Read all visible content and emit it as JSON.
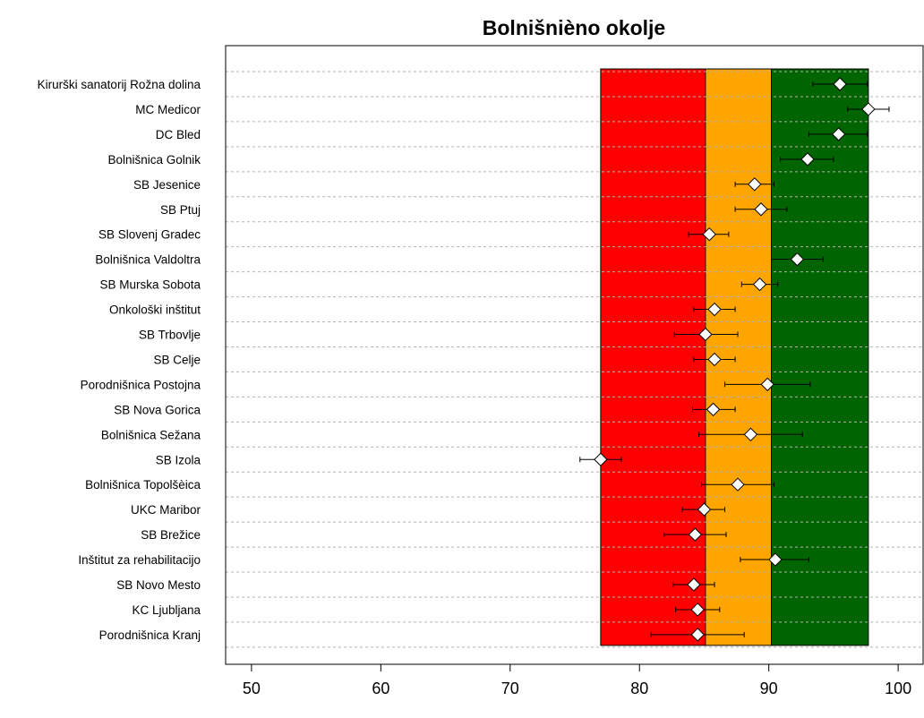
{
  "chart_data": {
    "type": "scatter",
    "title": "Bolnišnièno okolje",
    "xlim": [
      48,
      102
    ],
    "x_ticks": [
      50,
      60,
      70,
      80,
      90,
      100
    ],
    "grid": "horizontal-dashed",
    "bands": [
      {
        "from": 77.0,
        "to": 85.1,
        "color": "#ff0000"
      },
      {
        "from": 85.1,
        "to": 90.2,
        "color": "#ffa500"
      },
      {
        "from": 90.2,
        "to": 97.7,
        "color": "#006400"
      }
    ],
    "marker_color": "#ffffff",
    "rows": [
      {
        "label": "Kirurški sanatorij Rožna dolina",
        "value": 95.5,
        "low": 93.4,
        "high": 97.6
      },
      {
        "label": "MC Medicor",
        "value": 97.7,
        "low": 96.1,
        "high": 99.3
      },
      {
        "label": "DC Bled",
        "value": 95.4,
        "low": 93.1,
        "high": 97.6
      },
      {
        "label": "Bolnišnica Golnik",
        "value": 93.0,
        "low": 90.9,
        "high": 95.0
      },
      {
        "label": "SB Jesenice",
        "value": 88.9,
        "low": 87.4,
        "high": 90.4
      },
      {
        "label": "SB Ptuj",
        "value": 89.4,
        "low": 87.4,
        "high": 91.4
      },
      {
        "label": "SB Slovenj Gradec",
        "value": 85.4,
        "low": 83.8,
        "high": 86.9
      },
      {
        "label": "Bolnišnica Valdoltra",
        "value": 92.2,
        "low": 90.2,
        "high": 94.2
      },
      {
        "label": "SB Murska Sobota",
        "value": 89.3,
        "low": 87.9,
        "high": 90.7
      },
      {
        "label": "Onkološki inštitut",
        "value": 85.8,
        "low": 84.2,
        "high": 87.4
      },
      {
        "label": "SB Trbovlje",
        "value": 85.1,
        "low": 82.7,
        "high": 87.6
      },
      {
        "label": "SB Celje",
        "value": 85.8,
        "low": 84.2,
        "high": 87.4
      },
      {
        "label": "Porodnišnica Postojna",
        "value": 89.9,
        "low": 86.6,
        "high": 93.2
      },
      {
        "label": "SB Nova Gorica",
        "value": 85.7,
        "low": 84.1,
        "high": 87.4
      },
      {
        "label": "Bolnišnica Sežana",
        "value": 88.6,
        "low": 84.6,
        "high": 92.6
      },
      {
        "label": "SB Izola",
        "value": 77.0,
        "low": 75.4,
        "high": 78.6
      },
      {
        "label": "Bolnišnica Topolšèica",
        "value": 87.6,
        "low": 84.8,
        "high": 90.4
      },
      {
        "label": "UKC Maribor",
        "value": 85.0,
        "low": 83.3,
        "high": 86.6
      },
      {
        "label": "SB Brežice",
        "value": 84.3,
        "low": 81.9,
        "high": 86.7
      },
      {
        "label": "Inštitut za rehabilitacijo",
        "value": 90.5,
        "low": 87.8,
        "high": 93.1
      },
      {
        "label": "SB Novo Mesto",
        "value": 84.2,
        "low": 82.6,
        "high": 85.8
      },
      {
        "label": "KC Ljubljana",
        "value": 84.5,
        "low": 82.8,
        "high": 86.2
      },
      {
        "label": "Porodnišnica Kranj",
        "value": 84.5,
        "low": 80.9,
        "high": 88.1
      }
    ]
  }
}
